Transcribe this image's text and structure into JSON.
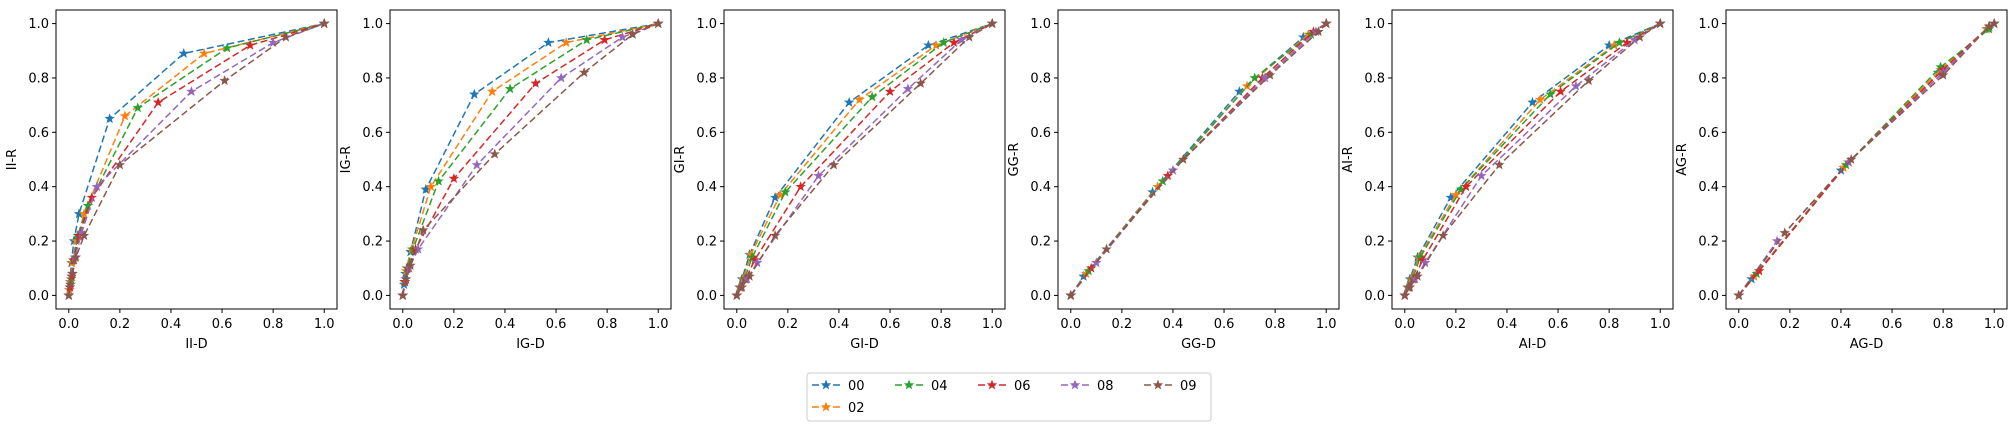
{
  "chart_data": [
    {
      "type": "line",
      "xlabel": "II-D",
      "ylabel": "II-R",
      "xlim": [
        -0.05,
        1.05
      ],
      "ylim": [
        -0.05,
        1.05
      ],
      "xticks": [
        "0.0",
        "0.2",
        "0.4",
        "0.6",
        "0.8",
        "1.0"
      ],
      "yticks": [
        "0.0",
        "0.2",
        "0.4",
        "0.6",
        "0.8",
        "1.0"
      ],
      "series": [
        {
          "name": "00",
          "x": [
            0,
            0.002,
            0.005,
            0.01,
            0.02,
            0.04,
            0.16,
            0.45,
            1.0
          ],
          "y": [
            0,
            0.02,
            0.05,
            0.12,
            0.2,
            0.3,
            0.65,
            0.89,
            1.0
          ]
        },
        {
          "name": "02",
          "x": [
            0,
            0.003,
            0.007,
            0.013,
            0.03,
            0.06,
            0.22,
            0.53,
            1.0
          ],
          "y": [
            0,
            0.02,
            0.05,
            0.12,
            0.2,
            0.3,
            0.66,
            0.89,
            1.0
          ]
        },
        {
          "name": "04",
          "x": [
            0,
            0.004,
            0.009,
            0.017,
            0.035,
            0.075,
            0.27,
            0.62,
            1.0
          ],
          "y": [
            0,
            0.03,
            0.06,
            0.13,
            0.22,
            0.33,
            0.69,
            0.91,
            1.0
          ]
        },
        {
          "name": "06",
          "x": [
            0,
            0.005,
            0.011,
            0.02,
            0.04,
            0.09,
            0.35,
            0.71,
            1.0
          ],
          "y": [
            0,
            0.03,
            0.07,
            0.13,
            0.22,
            0.36,
            0.71,
            0.92,
            1.0
          ]
        },
        {
          "name": "08",
          "x": [
            0,
            0.006,
            0.013,
            0.024,
            0.05,
            0.11,
            0.48,
            0.8,
            1.0
          ],
          "y": [
            0,
            0.04,
            0.08,
            0.14,
            0.23,
            0.4,
            0.75,
            0.93,
            1.0
          ]
        },
        {
          "name": "09",
          "x": [
            0,
            0.007,
            0.015,
            0.028,
            0.06,
            0.2,
            0.61,
            0.85,
            1.0
          ],
          "y": [
            0,
            0.04,
            0.08,
            0.14,
            0.22,
            0.48,
            0.79,
            0.95,
            1.0
          ]
        }
      ]
    },
    {
      "type": "line",
      "xlabel": "IG-D",
      "ylabel": "IG-R",
      "xlim": [
        -0.05,
        1.05
      ],
      "ylim": [
        -0.05,
        1.05
      ],
      "xticks": [
        "0.0",
        "0.2",
        "0.4",
        "0.6",
        "0.8",
        "1.0"
      ],
      "yticks": [
        "0.0",
        "0.2",
        "0.4",
        "0.6",
        "0.8",
        "1.0"
      ],
      "series": [
        {
          "name": "00",
          "x": [
            0,
            0.005,
            0.01,
            0.03,
            0.09,
            0.28,
            0.57,
            1.0
          ],
          "y": [
            0,
            0.04,
            0.08,
            0.16,
            0.39,
            0.74,
            0.93,
            1.0
          ]
        },
        {
          "name": "02",
          "x": [
            0,
            0.006,
            0.013,
            0.035,
            0.11,
            0.35,
            0.64,
            1.0
          ],
          "y": [
            0,
            0.05,
            0.09,
            0.17,
            0.4,
            0.75,
            0.93,
            1.0
          ]
        },
        {
          "name": "04",
          "x": [
            0,
            0.007,
            0.016,
            0.04,
            0.14,
            0.42,
            0.72,
            1.0
          ],
          "y": [
            0,
            0.05,
            0.1,
            0.17,
            0.42,
            0.76,
            0.94,
            1.0
          ]
        },
        {
          "name": "06",
          "x": [
            0,
            0.009,
            0.02,
            0.05,
            0.2,
            0.52,
            0.79,
            1.0
          ],
          "y": [
            0,
            0.05,
            0.1,
            0.17,
            0.43,
            0.78,
            0.94,
            1.0
          ]
        },
        {
          "name": "08",
          "x": [
            0,
            0.011,
            0.025,
            0.06,
            0.29,
            0.62,
            0.86,
            1.0
          ],
          "y": [
            0,
            0.06,
            0.1,
            0.17,
            0.48,
            0.8,
            0.95,
            1.0
          ]
        },
        {
          "name": "09",
          "x": [
            0,
            0.013,
            0.03,
            0.08,
            0.36,
            0.71,
            0.9,
            1.0
          ],
          "y": [
            0,
            0.06,
            0.11,
            0.24,
            0.52,
            0.82,
            0.96,
            1.0
          ]
        }
      ]
    },
    {
      "type": "line",
      "xlabel": "GI-D",
      "ylabel": "GI-R",
      "xlim": [
        -0.05,
        1.05
      ],
      "ylim": [
        -0.05,
        1.05
      ],
      "xticks": [
        "0.0",
        "0.2",
        "0.4",
        "0.6",
        "0.8",
        "1.0"
      ],
      "yticks": [
        "0.0",
        "0.2",
        "0.4",
        "0.6",
        "0.8",
        "1.0"
      ],
      "series": [
        {
          "name": "00",
          "x": [
            0,
            0.01,
            0.02,
            0.05,
            0.15,
            0.44,
            0.75,
            1.0
          ],
          "y": [
            0,
            0.03,
            0.06,
            0.15,
            0.36,
            0.71,
            0.92,
            1.0
          ]
        },
        {
          "name": "02",
          "x": [
            0,
            0.012,
            0.025,
            0.055,
            0.17,
            0.48,
            0.78,
            1.0
          ],
          "y": [
            0,
            0.03,
            0.06,
            0.15,
            0.37,
            0.72,
            0.92,
            1.0
          ]
        },
        {
          "name": "04",
          "x": [
            0,
            0.014,
            0.03,
            0.06,
            0.19,
            0.53,
            0.81,
            1.0
          ],
          "y": [
            0,
            0.03,
            0.06,
            0.14,
            0.38,
            0.73,
            0.93,
            1.0
          ]
        },
        {
          "name": "06",
          "x": [
            0,
            0.016,
            0.035,
            0.07,
            0.25,
            0.6,
            0.85,
            1.0
          ],
          "y": [
            0,
            0.03,
            0.06,
            0.13,
            0.4,
            0.75,
            0.93,
            1.0
          ]
        },
        {
          "name": "08",
          "x": [
            0,
            0.018,
            0.04,
            0.08,
            0.32,
            0.67,
            0.88,
            1.0
          ],
          "y": [
            0,
            0.03,
            0.06,
            0.12,
            0.44,
            0.76,
            0.94,
            1.0
          ]
        },
        {
          "name": "09",
          "x": [
            0,
            0.02,
            0.05,
            0.15,
            0.38,
            0.72,
            0.91,
            1.0
          ],
          "y": [
            0,
            0.03,
            0.07,
            0.22,
            0.48,
            0.78,
            0.95,
            1.0
          ]
        }
      ]
    },
    {
      "type": "line",
      "xlabel": "GG-D",
      "ylabel": "GG-R",
      "xlim": [
        -0.05,
        1.05
      ],
      "ylim": [
        -0.05,
        1.05
      ],
      "xticks": [
        "0.0",
        "0.2",
        "0.4",
        "0.6",
        "0.8",
        "1.0"
      ],
      "yticks": [
        "0.0",
        "0.2",
        "0.4",
        "0.6",
        "0.8",
        "1.0"
      ],
      "series": [
        {
          "name": "00",
          "x": [
            0,
            0.05,
            0.32,
            0.66,
            0.91,
            1.0
          ],
          "y": [
            0,
            0.07,
            0.38,
            0.75,
            0.95,
            1.0
          ]
        },
        {
          "name": "02",
          "x": [
            0,
            0.06,
            0.34,
            0.69,
            0.93,
            1.0
          ],
          "y": [
            0,
            0.08,
            0.4,
            0.77,
            0.96,
            1.0
          ]
        },
        {
          "name": "04",
          "x": [
            0,
            0.07,
            0.36,
            0.72,
            0.94,
            1.0
          ],
          "y": [
            0,
            0.09,
            0.42,
            0.8,
            0.96,
            1.0
          ]
        },
        {
          "name": "06",
          "x": [
            0,
            0.08,
            0.38,
            0.75,
            0.95,
            1.0
          ],
          "y": [
            0,
            0.1,
            0.44,
            0.8,
            0.97,
            1.0
          ]
        },
        {
          "name": "08",
          "x": [
            0,
            0.1,
            0.4,
            0.76,
            0.96,
            1.0
          ],
          "y": [
            0,
            0.12,
            0.46,
            0.8,
            0.97,
            1.0
          ]
        },
        {
          "name": "09",
          "x": [
            0,
            0.14,
            0.44,
            0.78,
            0.97,
            1.0
          ],
          "y": [
            0,
            0.17,
            0.5,
            0.81,
            0.97,
            1.0
          ]
        }
      ]
    },
    {
      "type": "line",
      "xlabel": "AI-D",
      "ylabel": "AI-R",
      "xlim": [
        -0.05,
        1.05
      ],
      "ylim": [
        -0.05,
        1.05
      ],
      "xticks": [
        "0.0",
        "0.2",
        "0.4",
        "0.6",
        "0.8",
        "1.0"
      ],
      "yticks": [
        "0.0",
        "0.2",
        "0.4",
        "0.6",
        "0.8",
        "1.0"
      ],
      "series": [
        {
          "name": "00",
          "x": [
            0,
            0.01,
            0.02,
            0.05,
            0.18,
            0.5,
            0.8,
            1.0
          ],
          "y": [
            0,
            0.03,
            0.06,
            0.14,
            0.36,
            0.71,
            0.92,
            1.0
          ]
        },
        {
          "name": "02",
          "x": [
            0,
            0.012,
            0.025,
            0.055,
            0.2,
            0.53,
            0.82,
            1.0
          ],
          "y": [
            0,
            0.03,
            0.06,
            0.14,
            0.37,
            0.72,
            0.92,
            1.0
          ]
        },
        {
          "name": "04",
          "x": [
            0,
            0.014,
            0.03,
            0.06,
            0.22,
            0.57,
            0.84,
            1.0
          ],
          "y": [
            0,
            0.03,
            0.06,
            0.14,
            0.39,
            0.74,
            0.93,
            1.0
          ]
        },
        {
          "name": "06",
          "x": [
            0,
            0.016,
            0.035,
            0.07,
            0.24,
            0.61,
            0.87,
            1.0
          ],
          "y": [
            0,
            0.03,
            0.06,
            0.13,
            0.4,
            0.75,
            0.93,
            1.0
          ]
        },
        {
          "name": "08",
          "x": [
            0,
            0.018,
            0.04,
            0.08,
            0.3,
            0.67,
            0.9,
            1.0
          ],
          "y": [
            0,
            0.03,
            0.06,
            0.12,
            0.44,
            0.77,
            0.94,
            1.0
          ]
        },
        {
          "name": "09",
          "x": [
            0,
            0.02,
            0.05,
            0.15,
            0.37,
            0.72,
            0.92,
            1.0
          ],
          "y": [
            0,
            0.03,
            0.07,
            0.22,
            0.48,
            0.79,
            0.95,
            1.0
          ]
        }
      ]
    },
    {
      "type": "line",
      "xlabel": "AG-D",
      "ylabel": "AG-R",
      "xlim": [
        -0.05,
        1.05
      ],
      "ylim": [
        -0.05,
        1.05
      ],
      "xticks": [
        "0.0",
        "0.2",
        "0.4",
        "0.6",
        "0.8",
        "1.0"
      ],
      "yticks": [
        "0.0",
        "0.2",
        "0.4",
        "0.6",
        "0.8",
        "1.0"
      ],
      "series": [
        {
          "name": "00",
          "x": [
            0,
            0.05,
            0.4,
            0.78,
            0.97,
            1.0
          ],
          "y": [
            0,
            0.06,
            0.46,
            0.82,
            0.98,
            1.0
          ]
        },
        {
          "name": "02",
          "x": [
            0,
            0.06,
            0.41,
            0.79,
            0.97,
            1.0
          ],
          "y": [
            0,
            0.07,
            0.47,
            0.83,
            0.98,
            1.0
          ]
        },
        {
          "name": "04",
          "x": [
            0,
            0.07,
            0.42,
            0.79,
            0.98,
            1.0
          ],
          "y": [
            0,
            0.08,
            0.48,
            0.84,
            0.98,
            1.0
          ]
        },
        {
          "name": "06",
          "x": [
            0,
            0.08,
            0.43,
            0.8,
            0.98,
            1.0
          ],
          "y": [
            0,
            0.09,
            0.49,
            0.83,
            0.99,
            1.0
          ]
        },
        {
          "name": "08",
          "x": [
            0,
            0.15,
            0.43,
            0.8,
            0.98,
            1.0
          ],
          "y": [
            0,
            0.2,
            0.49,
            0.82,
            0.99,
            1.0
          ]
        },
        {
          "name": "09",
          "x": [
            0,
            0.18,
            0.44,
            0.8,
            0.98,
            1.0
          ],
          "y": [
            0,
            0.23,
            0.5,
            0.81,
            0.99,
            1.0
          ]
        }
      ]
    }
  ],
  "legend": {
    "placement": "bottom-center",
    "entries": [
      {
        "name": "00",
        "color": "#1f77b4"
      },
      {
        "name": "02",
        "color": "#ff7f0e"
      },
      {
        "name": "04",
        "color": "#2ca02c"
      },
      {
        "name": "06",
        "color": "#d62728"
      },
      {
        "name": "08",
        "color": "#9467bd"
      },
      {
        "name": "09",
        "color": "#8c564b"
      }
    ]
  },
  "style": {
    "line_dash": "dashed",
    "marker": "star"
  }
}
